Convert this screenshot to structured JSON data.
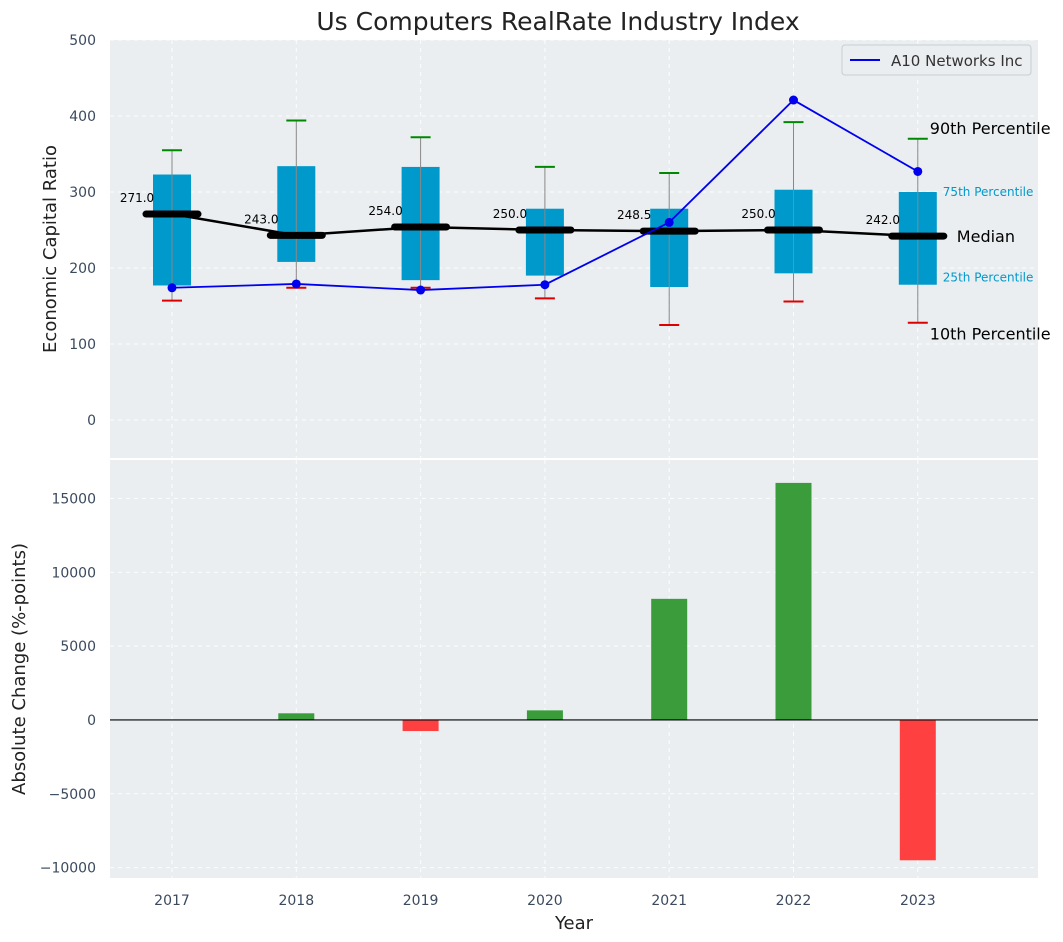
{
  "chart_data": [
    {
      "type": "box_with_line",
      "title": "Us Computers RealRate Industry Index",
      "ylabel": "Economic Capital Ratio",
      "ylim": [
        -50,
        500
      ],
      "yticks": [
        0,
        100,
        200,
        300,
        400,
        500
      ],
      "grid": true,
      "categories": [
        "2017",
        "2018",
        "2019",
        "2020",
        "2021",
        "2022",
        "2023"
      ],
      "p10": [
        157,
        174,
        174,
        160,
        125,
        156,
        128
      ],
      "p25": [
        177,
        208,
        184,
        190,
        175,
        193,
        178
      ],
      "median": [
        271,
        243,
        254,
        250,
        248.5,
        250,
        242
      ],
      "median_labels": [
        "271.0",
        "243.0",
        "254.0",
        "250.0",
        "248.5",
        "250.0",
        "242.0"
      ],
      "p75": [
        323,
        334,
        333,
        278,
        278,
        303,
        300
      ],
      "p90": [
        355,
        394,
        372,
        333,
        325,
        392,
        370
      ],
      "series": [
        {
          "name": "A10 Networks Inc",
          "values": [
            174,
            179,
            171,
            178,
            260,
            421,
            327
          ],
          "color": "#0000ee"
        }
      ],
      "legend": {
        "position": "top-right",
        "entries": [
          "A10 Networks Inc"
        ]
      },
      "annotations": {
        "p90": "90th Percentile",
        "p75": "75th Percentile",
        "median": "Median",
        "p25": "25th Percentile",
        "p10": "10th Percentile"
      },
      "colors": {
        "box": "#0099cc",
        "median_line": "#000000",
        "p90_cap": "#008800",
        "p10_cap": "#dd0000",
        "whisker": "#888888"
      }
    },
    {
      "type": "bar",
      "xlabel": "Year",
      "ylabel": "Absolute Change (%-points)",
      "ylim": [
        -10700,
        17600
      ],
      "yticks": [
        -10000,
        -5000,
        0,
        5000,
        10000,
        15000
      ],
      "ytick_labels": [
        "−10000",
        "−5000",
        "0",
        "5000",
        "10000",
        "15000"
      ],
      "categories": [
        "2017",
        "2018",
        "2019",
        "2020",
        "2021",
        "2022",
        "2023"
      ],
      "values": [
        0,
        450,
        -750,
        650,
        8200,
        16050,
        -9500
      ],
      "colors": {
        "positive": "#3a9c3a",
        "negative": "#ff4040"
      }
    }
  ]
}
